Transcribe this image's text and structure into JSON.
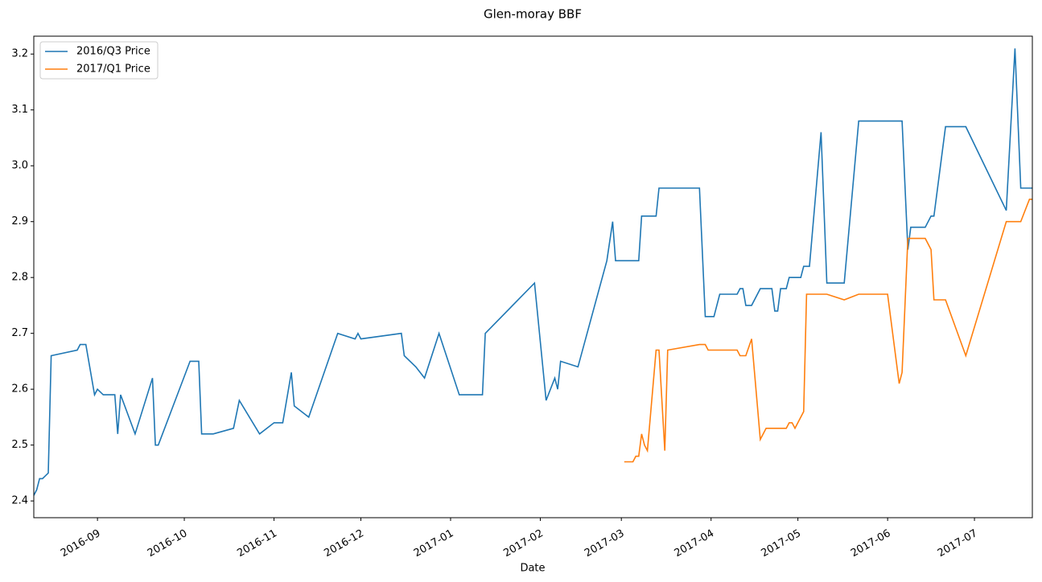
{
  "chart_data": {
    "type": "line",
    "title": "Glen-moray BBF",
    "x_label": "Date",
    "xlim": [
      17023,
      17368
    ],
    "xticks": [
      {
        "value": 17045,
        "label": "2016-09"
      },
      {
        "value": 17075,
        "label": "2016-10"
      },
      {
        "value": 17106,
        "label": "2016-11"
      },
      {
        "value": 17136,
        "label": "2016-12"
      },
      {
        "value": 17167,
        "label": "2017-01"
      },
      {
        "value": 17198,
        "label": "2017-02"
      },
      {
        "value": 17226,
        "label": "2017-03"
      },
      {
        "value": 17257,
        "label": "2017-04"
      },
      {
        "value": 17287,
        "label": "2017-05"
      },
      {
        "value": 17318,
        "label": "2017-06"
      },
      {
        "value": 17348,
        "label": "2017-07"
      }
    ],
    "ylim": [
      2.37,
      3.232
    ],
    "yticks": [
      2.4,
      2.5,
      2.6,
      2.7,
      2.8,
      2.9,
      {
        "value": 3,
        "label": "3.0"
      },
      3.1,
      3.2
    ],
    "legend": "upper left",
    "grid": false,
    "series": [
      {
        "name": "2016/Q3 Price",
        "color": "#1f77b4",
        "x": [
          17023,
          17024,
          17025,
          17026,
          17028,
          17029,
          17038,
          17039,
          17041,
          17044,
          17045,
          17047,
          17051,
          17052,
          17053,
          17058,
          17064,
          17065,
          17066,
          17077,
          17080,
          17081,
          17085,
          17092,
          17094,
          17101,
          17106,
          17109,
          17112,
          17113,
          17118,
          17128,
          17134,
          17135,
          17136,
          17150,
          17151,
          17155,
          17158,
          17163,
          17170,
          17178,
          17179,
          17196,
          17200,
          17203,
          17204,
          17205,
          17211,
          17221,
          17223,
          17224,
          17232,
          17233,
          17238,
          17239,
          17253,
          17255,
          17258,
          17260,
          17266,
          17267,
          17268,
          17269,
          17271,
          17274,
          17278,
          17279,
          17280,
          17281,
          17283,
          17284,
          17288,
          17289,
          17291,
          17295,
          17297,
          17303,
          17308,
          17323,
          17325,
          17326,
          17331,
          17333,
          17334,
          17338,
          17345,
          17359,
          17362,
          17364,
          17368
        ],
        "values": [
          2.41,
          2.42,
          2.44,
          2.44,
          2.45,
          2.66,
          2.67,
          2.68,
          2.68,
          2.59,
          2.6,
          2.59,
          2.59,
          2.52,
          2.59,
          2.52,
          2.62,
          2.5,
          2.5,
          2.65,
          2.65,
          2.52,
          2.52,
          2.53,
          2.58,
          2.52,
          2.54,
          2.54,
          2.63,
          2.57,
          2.55,
          2.7,
          2.69,
          2.7,
          2.69,
          2.7,
          2.66,
          2.64,
          2.62,
          2.7,
          2.59,
          2.59,
          2.7,
          2.79,
          2.58,
          2.62,
          2.6,
          2.65,
          2.64,
          2.83,
          2.9,
          2.83,
          2.83,
          2.91,
          2.91,
          2.96,
          2.96,
          2.73,
          2.73,
          2.77,
          2.77,
          2.78,
          2.78,
          2.75,
          2.75,
          2.78,
          2.78,
          2.74,
          2.74,
          2.78,
          2.78,
          2.8,
          2.8,
          2.82,
          2.82,
          3.06,
          2.79,
          2.79,
          3.08,
          3.08,
          2.85,
          2.89,
          2.89,
          2.91,
          2.91,
          3.07,
          3.07,
          2.92,
          3.21,
          2.96,
          2.96
        ]
      },
      {
        "name": "2017/Q1 Price",
        "color": "#ff7f0e",
        "x": [
          17227,
          17230,
          17231,
          17232,
          17233,
          17234,
          17235,
          17238,
          17239,
          17241,
          17242,
          17253,
          17255,
          17256,
          17266,
          17267,
          17269,
          17271,
          17274,
          17276,
          17283,
          17284,
          17285,
          17286,
          17289,
          17290,
          17297,
          17303,
          17308,
          17318,
          17322,
          17323,
          17325,
          17331,
          17333,
          17334,
          17338,
          17345,
          17359,
          17364,
          17367,
          17368
        ],
        "values": [
          2.47,
          2.47,
          2.48,
          2.48,
          2.52,
          2.5,
          2.49,
          2.67,
          2.67,
          2.49,
          2.67,
          2.68,
          2.68,
          2.67,
          2.67,
          2.66,
          2.66,
          2.69,
          2.51,
          2.53,
          2.53,
          2.54,
          2.54,
          2.53,
          2.56,
          2.77,
          2.77,
          2.76,
          2.77,
          2.77,
          2.61,
          2.63,
          2.87,
          2.87,
          2.85,
          2.76,
          2.76,
          2.66,
          2.9,
          2.9,
          2.94,
          2.94
        ]
      }
    ]
  }
}
